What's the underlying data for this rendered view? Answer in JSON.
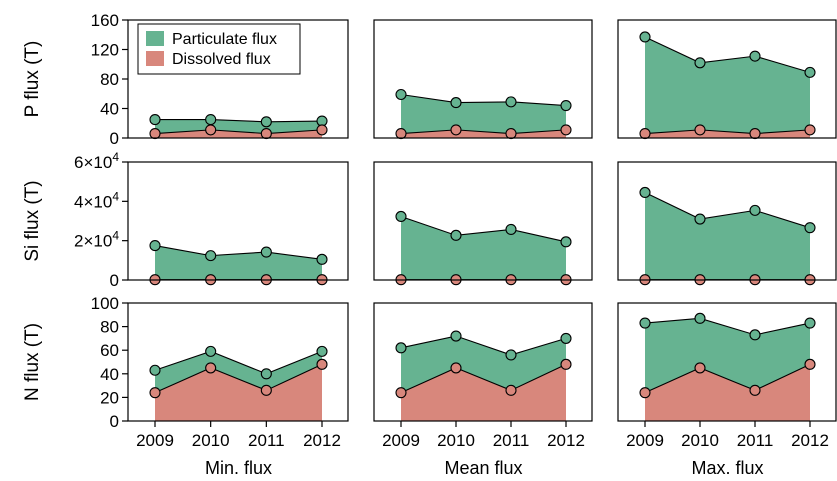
{
  "colors": {
    "particulate": "#66b391",
    "dissolved": "#d8877c",
    "frame": "#000000"
  },
  "legend": {
    "particulate_label": "Particulate flux",
    "dissolved_label": "Dissolved flux"
  },
  "chart_data": [
    {
      "type": "area",
      "row_label": "P flux (T)",
      "column_label": "Min. flux",
      "x": [
        2009,
        2010,
        2011,
        2012
      ],
      "ylim": [
        0,
        160
      ],
      "y_ticks": [
        "0",
        "40",
        "80",
        "120",
        "160"
      ],
      "series": [
        {
          "name": "Dissolved flux",
          "values": [
            6,
            11,
            6,
            11
          ]
        },
        {
          "name": "Particulate flux",
          "values": [
            25,
            25,
            22,
            23
          ]
        }
      ]
    },
    {
      "type": "area",
      "row_label": "P flux (T)",
      "column_label": "Mean flux",
      "x": [
        2009,
        2010,
        2011,
        2012
      ],
      "ylim": [
        0,
        160
      ],
      "series": [
        {
          "name": "Dissolved flux",
          "values": [
            6,
            11,
            6,
            11
          ]
        },
        {
          "name": "Particulate flux",
          "values": [
            59,
            48,
            49,
            44
          ]
        }
      ]
    },
    {
      "type": "area",
      "row_label": "P flux (T)",
      "column_label": "Max. flux",
      "x": [
        2009,
        2010,
        2011,
        2012
      ],
      "ylim": [
        0,
        160
      ],
      "series": [
        {
          "name": "Dissolved flux",
          "values": [
            6,
            11,
            6,
            11
          ]
        },
        {
          "name": "Particulate flux",
          "values": [
            137,
            102,
            111,
            89
          ]
        }
      ]
    },
    {
      "type": "area",
      "row_label": "Si flux (T)",
      "column_label": "Min. flux",
      "x": [
        2009,
        2010,
        2011,
        2012
      ],
      "ylim": [
        0,
        60000
      ],
      "y_ticks": [
        "0",
        "2×10⁴",
        "4×10⁴",
        "6×10⁴"
      ],
      "series": [
        {
          "name": "Dissolved flux",
          "values": [
            150,
            150,
            150,
            150
          ]
        },
        {
          "name": "Particulate flux",
          "values": [
            17500,
            12400,
            14200,
            10500
          ]
        }
      ]
    },
    {
      "type": "area",
      "row_label": "Si flux (T)",
      "column_label": "Mean flux",
      "x": [
        2009,
        2010,
        2011,
        2012
      ],
      "ylim": [
        0,
        60000
      ],
      "series": [
        {
          "name": "Dissolved flux",
          "values": [
            150,
            150,
            150,
            150
          ]
        },
        {
          "name": "Particulate flux",
          "values": [
            32300,
            22700,
            25700,
            19400
          ]
        }
      ]
    },
    {
      "type": "area",
      "row_label": "Si flux (T)",
      "column_label": "Max. flux",
      "x": [
        2009,
        2010,
        2011,
        2012
      ],
      "ylim": [
        0,
        60000
      ],
      "series": [
        {
          "name": "Dissolved flux",
          "values": [
            150,
            150,
            150,
            150
          ]
        },
        {
          "name": "Particulate flux",
          "values": [
            44500,
            31000,
            35400,
            26600
          ]
        }
      ]
    },
    {
      "type": "area",
      "row_label": "N flux (T)",
      "column_label": "Min. flux",
      "x": [
        2009,
        2010,
        2011,
        2012
      ],
      "x_ticks": [
        "2009",
        "2010",
        "2011",
        "2012"
      ],
      "ylim": [
        0,
        100
      ],
      "y_ticks": [
        "0",
        "20",
        "40",
        "60",
        "80",
        "100"
      ],
      "series": [
        {
          "name": "Dissolved flux",
          "values": [
            24,
            45,
            26,
            48
          ]
        },
        {
          "name": "Particulate flux",
          "values": [
            43,
            59,
            40,
            59
          ]
        }
      ]
    },
    {
      "type": "area",
      "row_label": "N flux (T)",
      "column_label": "Mean flux",
      "x": [
        2009,
        2010,
        2011,
        2012
      ],
      "x_ticks": [
        "2009",
        "2010",
        "2011",
        "2012"
      ],
      "ylim": [
        0,
        100
      ],
      "series": [
        {
          "name": "Dissolved flux",
          "values": [
            24,
            45,
            26,
            48
          ]
        },
        {
          "name": "Particulate flux",
          "values": [
            62,
            72,
            56,
            70
          ]
        }
      ]
    },
    {
      "type": "area",
      "row_label": "N flux (T)",
      "column_label": "Max. flux",
      "x": [
        2009,
        2010,
        2011,
        2012
      ],
      "x_ticks": [
        "2009",
        "2010",
        "2011",
        "2012"
      ],
      "ylim": [
        0,
        100
      ],
      "series": [
        {
          "name": "Dissolved flux",
          "values": [
            24,
            45,
            26,
            48
          ]
        },
        {
          "name": "Particulate flux",
          "values": [
            83,
            87,
            73,
            83
          ]
        }
      ]
    }
  ]
}
